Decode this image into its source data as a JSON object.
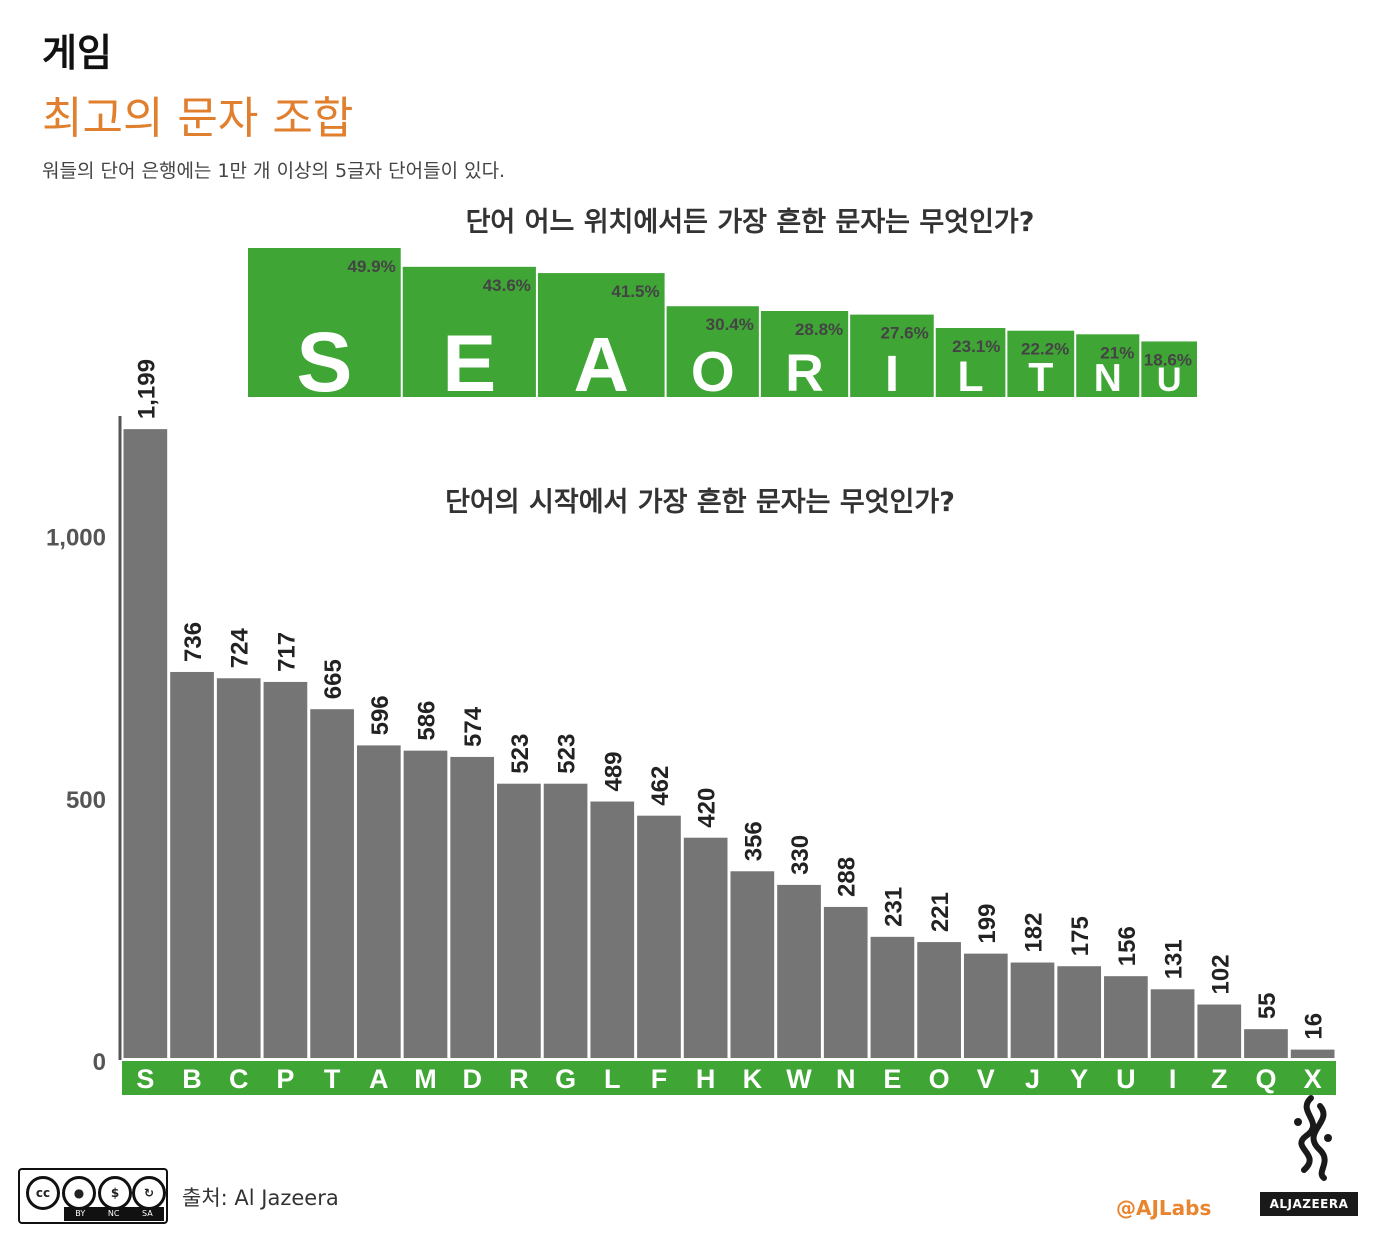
{
  "header": {
    "category": "게임",
    "title": "최고의 문자 조합",
    "subtitle": "워들의 단어 은행에는 1만 개 이상의 5글자 단어들이 있다."
  },
  "footer": {
    "source": "출처: Al Jazeera",
    "handle": "@AJLabs",
    "brand": "ALJAZEERA",
    "license_labels": [
      "BY",
      "NC",
      "SA"
    ],
    "license_mark": "cc"
  },
  "colors": {
    "green": "#3fa535",
    "bar_gray": "#757575",
    "orange": "#e07f2e"
  },
  "chart_data": [
    {
      "type": "bar",
      "title": "단어 어느 위치에서든 가장 흔한 문자는 무엇인가?",
      "categories": [
        "S",
        "E",
        "A",
        "O",
        "R",
        "I",
        "L",
        "T",
        "N",
        "U"
      ],
      "values": [
        49.9,
        43.6,
        41.5,
        30.4,
        28.8,
        27.6,
        23.1,
        22.2,
        21,
        18.6
      ],
      "value_labels": [
        "49.9%",
        "43.6%",
        "41.5%",
        "30.4%",
        "28.8%",
        "27.6%",
        "23.1%",
        "22.2%",
        "21%",
        "18.6%"
      ],
      "unit": "%"
    },
    {
      "type": "bar",
      "title": "단어의 시작에서 가장 흔한 문자는 무엇인가?",
      "categories": [
        "S",
        "B",
        "C",
        "P",
        "T",
        "A",
        "M",
        "D",
        "R",
        "G",
        "L",
        "F",
        "H",
        "K",
        "W",
        "N",
        "E",
        "O",
        "V",
        "J",
        "Y",
        "U",
        "I",
        "Z",
        "Q",
        "X"
      ],
      "values": [
        1199,
        736,
        724,
        717,
        665,
        596,
        586,
        574,
        523,
        523,
        489,
        462,
        420,
        356,
        330,
        288,
        231,
        221,
        199,
        182,
        175,
        156,
        131,
        102,
        55,
        16
      ],
      "value_labels": [
        "1,199",
        "736",
        "724",
        "717",
        "665",
        "596",
        "586",
        "574",
        "523",
        "523",
        "489",
        "462",
        "420",
        "356",
        "330",
        "288",
        "231",
        "221",
        "199",
        "182",
        "175",
        "156",
        "131",
        "102",
        "55",
        "16"
      ],
      "yticks": [
        0,
        500,
        1000
      ],
      "ytick_labels": [
        "0",
        "500",
        "1,000"
      ],
      "ylim": [
        0,
        1199
      ]
    }
  ]
}
